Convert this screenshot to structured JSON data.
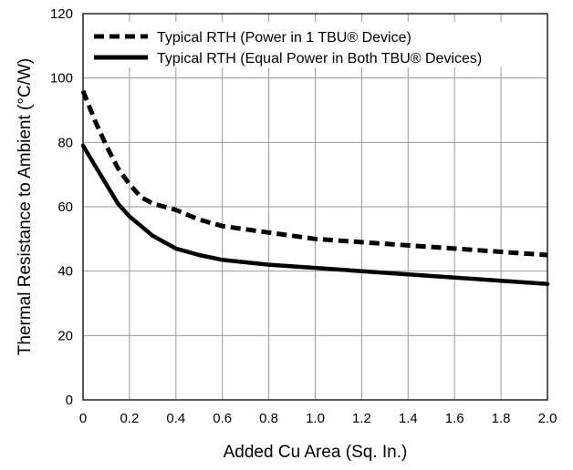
{
  "chart_data": {
    "type": "line",
    "xlabel": "Added Cu Area (Sq. In.)",
    "ylabel": "Thermal Resistance to Ambient (°C/W)",
    "xlim": [
      0,
      2.0
    ],
    "ylim": [
      0,
      120
    ],
    "x_ticks": [
      "0",
      "0.2",
      "0.4",
      "0.6",
      "0.8",
      "1.0",
      "1.2",
      "1.4",
      "1.6",
      "1.8",
      "2.0"
    ],
    "y_ticks": [
      "0",
      "20",
      "40",
      "60",
      "80",
      "100",
      "120"
    ],
    "grid": true,
    "legend_position": "top",
    "series": [
      {
        "name": "Typical RTH (Power in 1 TBU® Device)",
        "style": "dashed",
        "color": "#000000",
        "points": [
          [
            0,
            96
          ],
          [
            0.05,
            87
          ],
          [
            0.1,
            79
          ],
          [
            0.15,
            72
          ],
          [
            0.2,
            67
          ],
          [
            0.25,
            63
          ],
          [
            0.3,
            61
          ],
          [
            0.4,
            59
          ],
          [
            0.5,
            56
          ],
          [
            0.6,
            54
          ],
          [
            0.8,
            52
          ],
          [
            1.0,
            50
          ],
          [
            1.2,
            49
          ],
          [
            1.4,
            48
          ],
          [
            1.6,
            47
          ],
          [
            1.8,
            46
          ],
          [
            2.0,
            45
          ]
        ]
      },
      {
        "name": "Typical RTH (Equal Power in Both TBU® Devices)",
        "style": "solid",
        "color": "#000000",
        "points": [
          [
            0,
            79
          ],
          [
            0.05,
            73
          ],
          [
            0.1,
            67
          ],
          [
            0.15,
            61
          ],
          [
            0.2,
            57
          ],
          [
            0.25,
            54
          ],
          [
            0.3,
            51
          ],
          [
            0.4,
            47
          ],
          [
            0.5,
            45
          ],
          [
            0.6,
            43.5
          ],
          [
            0.8,
            42
          ],
          [
            1.0,
            41
          ],
          [
            1.2,
            40
          ],
          [
            1.4,
            39
          ],
          [
            1.6,
            38
          ],
          [
            1.8,
            37
          ],
          [
            2.0,
            36
          ]
        ]
      }
    ]
  }
}
